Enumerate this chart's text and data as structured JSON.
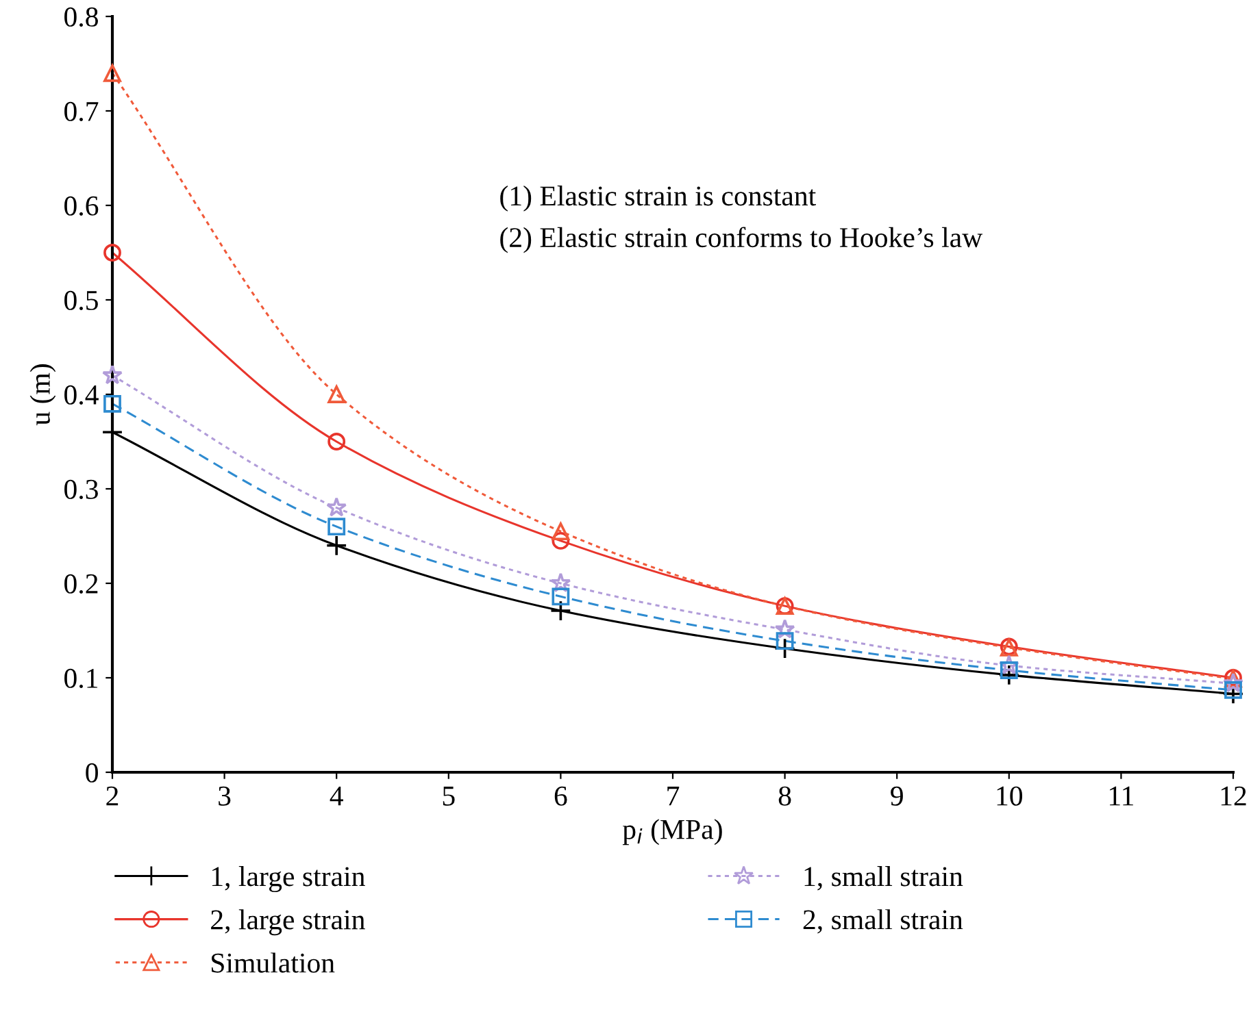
{
  "chart_data": {
    "type": "line",
    "xlabel": "p$_{i}$ (MPa)",
    "ylabel": "u (m)",
    "x": [
      2,
      4,
      6,
      8,
      10,
      12
    ],
    "xlim": [
      2,
      12
    ],
    "xticks": [
      2,
      3,
      4,
      5,
      6,
      7,
      8,
      9,
      10,
      11,
      12
    ],
    "ylim": [
      0,
      0.8
    ],
    "yticks": [
      0,
      0.1,
      0.2,
      0.3,
      0.4,
      0.5,
      0.6,
      0.7,
      0.8
    ],
    "grid": false,
    "legend": "bottom",
    "annotations": [
      "(1) Elastic strain is constant",
      "(2) Elastic strain conforms to Hooke’s law"
    ],
    "series": [
      {
        "name": "1, large strain",
        "color": "#000000",
        "marker": "cross",
        "line_style": "solid",
        "values": [
          0.36,
          0.24,
          0.171,
          0.131,
          0.103,
          0.083
        ]
      },
      {
        "name": "2, large strain",
        "color": "#e8352c",
        "marker": "circle",
        "line_style": "solid",
        "values": [
          0.55,
          0.35,
          0.245,
          0.176,
          0.133,
          0.1
        ]
      },
      {
        "name": "Simulation",
        "color": "#f05a3a",
        "marker": "triangle",
        "line_style": "dotted",
        "values": [
          0.74,
          0.4,
          0.255,
          0.176,
          0.132,
          0.099
        ]
      },
      {
        "name": "1, small strain",
        "color": "#b19cd9",
        "marker": "star",
        "line_style": "dotted",
        "values": [
          0.42,
          0.28,
          0.2,
          0.151,
          0.113,
          0.094
        ]
      },
      {
        "name": "2, small strain",
        "color": "#2e8bd0",
        "marker": "square",
        "line_style": "dashed",
        "values": [
          0.39,
          0.26,
          0.186,
          0.139,
          0.108,
          0.087
        ]
      }
    ]
  }
}
